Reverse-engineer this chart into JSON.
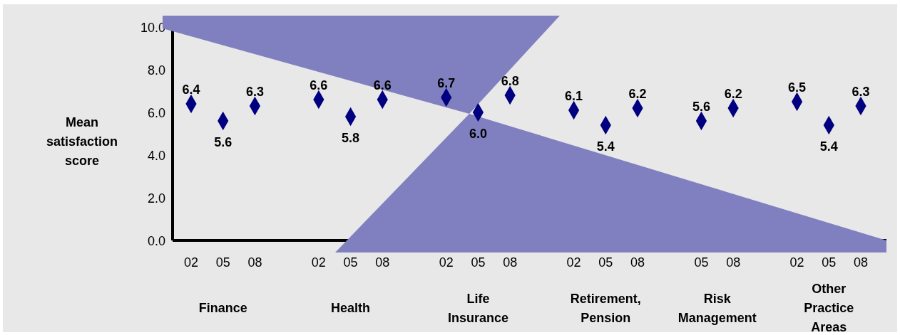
{
  "chart_data": {
    "type": "scatter",
    "ylabel": "Mean\nsatisfaction\nscore",
    "categories": [
      "02",
      "05",
      "08",
      null,
      "02",
      "05",
      "08",
      null,
      "02",
      "05",
      "08",
      null,
      "02",
      "05",
      "08",
      null,
      "05",
      "08",
      null,
      "02",
      "05",
      "08"
    ],
    "series": [
      {
        "color": "#000080",
        "values": [
          6.4,
          5.6,
          6.3,
          null,
          6.6,
          5.8,
          6.6,
          null,
          6.7,
          6.0,
          6.8,
          null,
          6.1,
          5.4,
          6.2,
          null,
          5.6,
          6.2,
          null,
          6.5,
          5.4,
          6.3
        ],
        "value_labels": [
          "6.4",
          "5.6",
          "6.3",
          null,
          "6.6",
          "5.8",
          "6.6",
          null,
          "6.7",
          "6.0",
          "6.8",
          null,
          "6.1",
          "5.4",
          "6.2",
          null,
          "5.6",
          "6.2",
          null,
          "6.5",
          "5.4",
          "6.3"
        ]
      }
    ],
    "ylim": [
      0,
      10
    ],
    "yticks": [
      {
        "value": 0,
        "label": "0.0"
      },
      {
        "value": 2,
        "label": "2.0"
      },
      {
        "value": 4,
        "label": "4.0"
      },
      {
        "value": 6,
        "label": "6.0"
      },
      {
        "value": 8,
        "label": "8.0"
      },
      {
        "value": 10,
        "label": "10.0"
      }
    ],
    "annotations": [
      "Finance",
      "Health",
      "Life\nInsurance",
      "Retirement,\nPension",
      "Risk\nManagement",
      "Other\nPractice\nAreas"
    ],
    "marker": "diamond"
  }
}
